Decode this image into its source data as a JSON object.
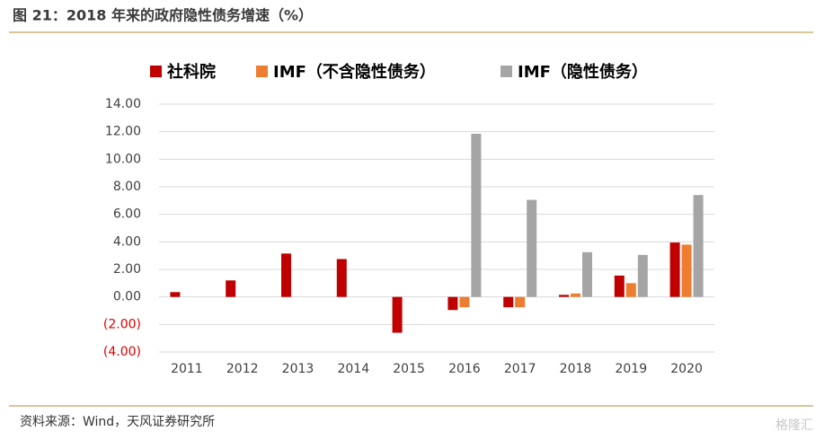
{
  "chart_data": {
    "type": "bar",
    "title": "图 21：2018 年来的政府隐性债务增速（%）",
    "source": "资料来源：Wind，天风证券研究所",
    "categories": [
      "2011",
      "2012",
      "2013",
      "2014",
      "2015",
      "2016",
      "2017",
      "2018",
      "2019",
      "2020"
    ],
    "series": [
      {
        "name": "社科院",
        "color": "#c00000",
        "values": [
          0.35,
          1.2,
          3.15,
          2.75,
          -2.6,
          -0.95,
          -0.75,
          0.15,
          1.55,
          3.95
        ]
      },
      {
        "name": "IMF（不含隐性债务）",
        "color": "#ed7d31",
        "values": [
          null,
          null,
          null,
          null,
          null,
          -0.75,
          -0.75,
          0.25,
          1.0,
          3.8
        ]
      },
      {
        "name": "IMF（隐性债务）",
        "color": "#a5a5a5",
        "values": [
          null,
          null,
          null,
          null,
          null,
          11.85,
          7.05,
          3.25,
          3.05,
          7.4
        ]
      }
    ],
    "ylim": [
      -4,
      14
    ],
    "yticks": [
      {
        "value": -4,
        "label": "(4.00)"
      },
      {
        "value": -2,
        "label": "(2.00)"
      },
      {
        "value": 0,
        "label": "0.00"
      },
      {
        "value": 2,
        "label": "2.00"
      },
      {
        "value": 4,
        "label": "4.00"
      },
      {
        "value": 6,
        "label": "6.00"
      },
      {
        "value": 8,
        "label": "8.00"
      },
      {
        "value": 10,
        "label": "10.00"
      },
      {
        "value": 12,
        "label": "12.00"
      },
      {
        "value": 14,
        "label": "14.00"
      }
    ],
    "grid": true,
    "legend": "top"
  },
  "watermark": "格隆汇"
}
